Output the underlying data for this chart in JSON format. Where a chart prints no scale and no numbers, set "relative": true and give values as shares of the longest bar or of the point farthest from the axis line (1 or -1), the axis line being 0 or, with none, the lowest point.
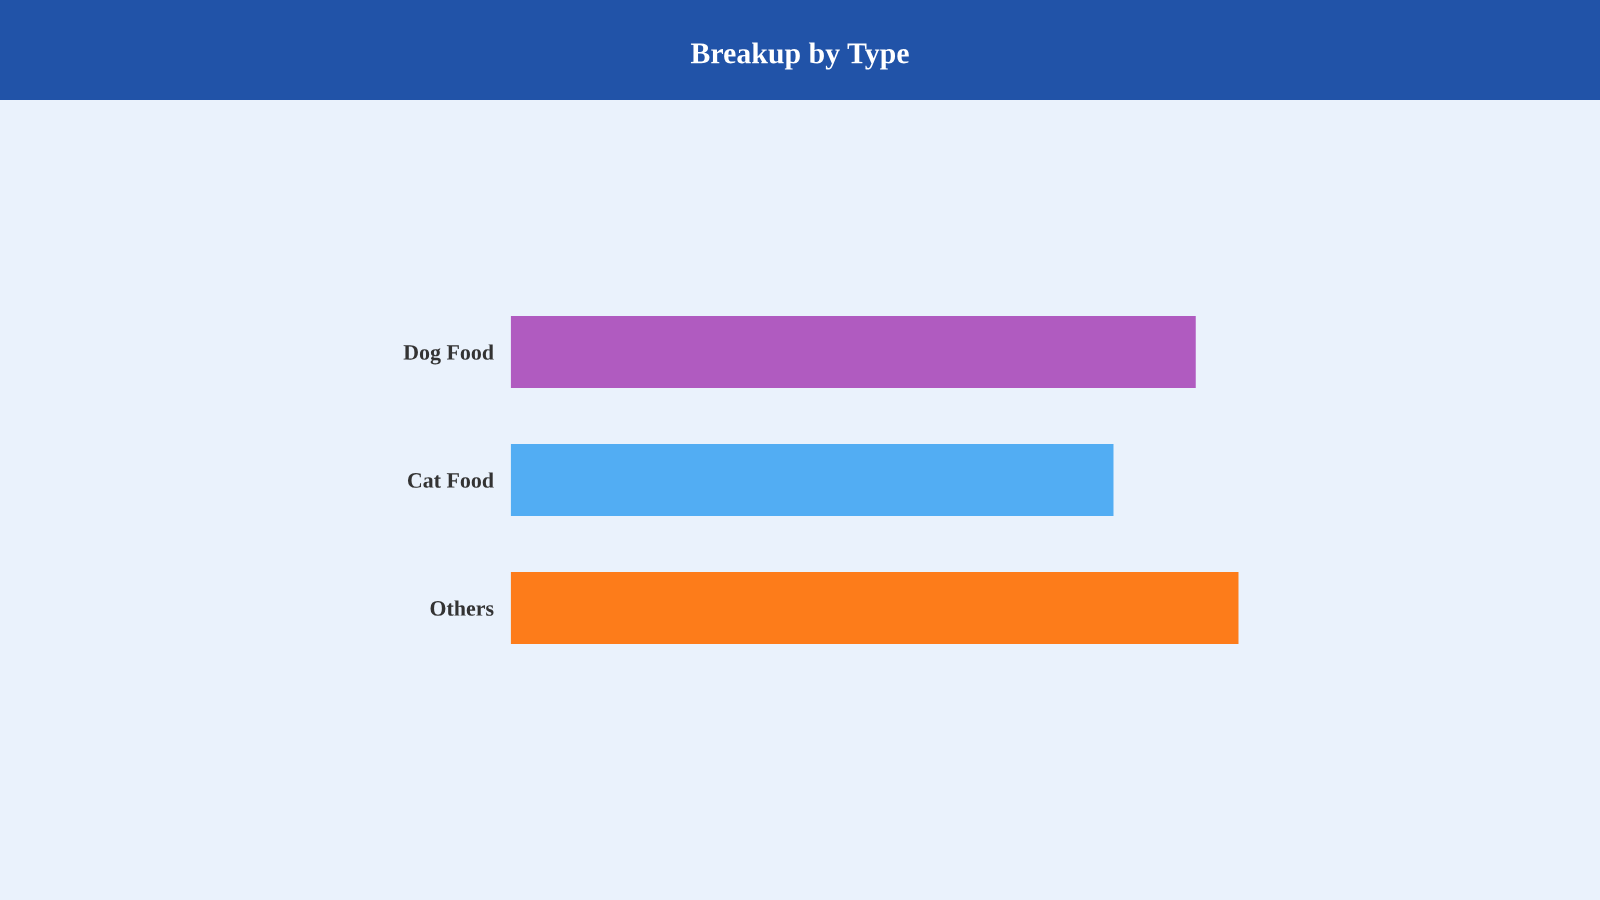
{
  "chart_data": {
    "type": "bar",
    "orientation": "horizontal",
    "relative": true,
    "title": "Breakup by Type",
    "categories": [
      "Dog Food",
      "Cat Food",
      "Others"
    ],
    "values": [
      0.941,
      0.828,
      1
    ],
    "colors": [
      "#b05bc0",
      "#52adf3",
      "#fd7c1a"
    ],
    "tick_labels": "y"
  }
}
